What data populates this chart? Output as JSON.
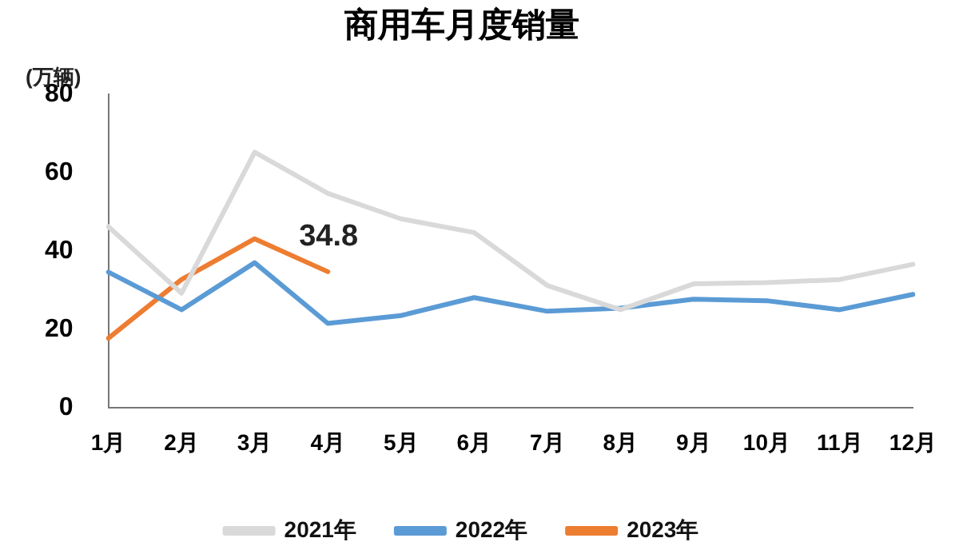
{
  "chart_data": {
    "type": "line",
    "title": "商用车月度销量",
    "ylabel": "(万辆)",
    "categories": [
      "1月",
      "2月",
      "3月",
      "4月",
      "5月",
      "6月",
      "7月",
      "8月",
      "9月",
      "10月",
      "11月",
      "12月"
    ],
    "series": [
      {
        "name": "2021年",
        "color": "#d9d9d9",
        "values": [
          46.3,
          29.3,
          65.3,
          54.8,
          48.3,
          44.8,
          31.3,
          25.1,
          31.7,
          32.0,
          32.8,
          36.7
        ]
      },
      {
        "name": "2022年",
        "color": "#5b9bd5",
        "values": [
          34.7,
          25.1,
          37.1,
          21.6,
          23.6,
          28.2,
          24.7,
          25.5,
          27.8,
          27.4,
          25.1,
          29.0
        ]
      },
      {
        "name": "2023年",
        "color": "#ed7d31",
        "values": [
          17.8,
          32.8,
          43.2,
          34.8,
          null,
          null,
          null,
          null,
          null,
          null,
          null,
          null
        ],
        "value_labels": [
          null,
          null,
          null,
          "34.8",
          null,
          null,
          null,
          null,
          null,
          null,
          null,
          null
        ]
      }
    ],
    "ylim": [
      0,
      80
    ],
    "yticks": [
      0,
      20,
      40,
      60,
      80
    ],
    "grid": false,
    "legend": "bottom",
    "marker": "none",
    "line_style": "solid"
  }
}
